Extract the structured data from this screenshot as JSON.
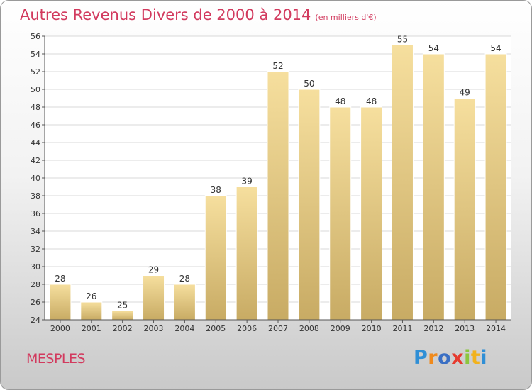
{
  "title": {
    "main": "Autres Revenus Divers de 2000 à 2014",
    "unit": "(en milliers d'€)"
  },
  "location": "MESPLES",
  "logo": {
    "letters": [
      "P",
      "r",
      "o",
      "x",
      "i",
      "t",
      "i"
    ]
  },
  "colors": {
    "title": "#d23a5e",
    "bar_top": "#f6df9e",
    "bar_bottom": "#c8ab64",
    "grid": "#d8d8d8",
    "axis": "#555555",
    "label": "#333333"
  },
  "chart_data": {
    "type": "bar",
    "categories": [
      "2000",
      "2001",
      "2002",
      "2003",
      "2004",
      "2005",
      "2006",
      "2007",
      "2008",
      "2009",
      "2010",
      "2011",
      "2012",
      "2013",
      "2014"
    ],
    "values": [
      28,
      26,
      25,
      29,
      28,
      38,
      39,
      52,
      50,
      48,
      48,
      55,
      54,
      49,
      54
    ],
    "ylim": [
      24,
      56
    ],
    "yticks": [
      24,
      26,
      28,
      30,
      32,
      34,
      36,
      38,
      40,
      42,
      44,
      46,
      48,
      50,
      52,
      54,
      56
    ],
    "grid": true,
    "data_labels": true
  }
}
